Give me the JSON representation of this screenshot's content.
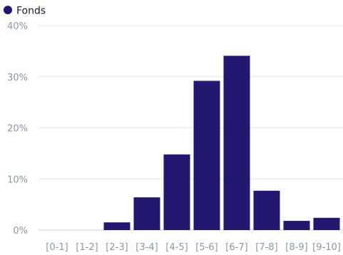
{
  "chart_data": {
    "type": "bar",
    "categories": [
      "[0-1]",
      "[1-2]",
      "[2-3]",
      "[3-4]",
      "[4-5]",
      "[5-6]",
      "[6-7]",
      "[7-8]",
      "[8-9]",
      "[9-10]"
    ],
    "series": [
      {
        "name": "Fonds",
        "color": "#22186f",
        "values": [
          0,
          0,
          1.5,
          6.4,
          14.8,
          29.2,
          34.1,
          7.7,
          1.8,
          2.4
        ]
      }
    ],
    "title": "",
    "xlabel": "",
    "ylabel": "",
    "ylim": [
      0,
      40
    ],
    "yticks": [
      "0%",
      "10%",
      "20%",
      "30%",
      "40%"
    ],
    "grid": true,
    "legend_position": "top-left"
  }
}
